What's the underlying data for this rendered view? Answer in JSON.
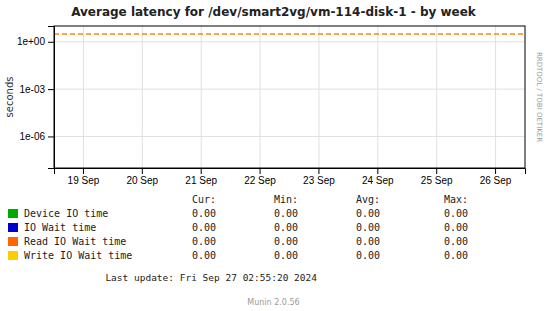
{
  "chart_data": {
    "type": "line",
    "title": "Average latency for /dev/smart2vg/vm-114-disk-1 - by week",
    "y_label": "seconds",
    "categories": [
      "19 Sep",
      "20 Sep",
      "21 Sep",
      "22 Sep",
      "23 Sep",
      "24 Sep",
      "25 Sep",
      "26 Sep"
    ],
    "log": "y",
    "ylim": [
      1e-08,
      10
    ],
    "yticks": [
      {
        "value": 1e-06,
        "label": "1e-06"
      },
      {
        "value": 0.001,
        "label": "1e-03"
      },
      {
        "value": 1,
        "label": "1e+00"
      }
    ],
    "grid": true,
    "annotations": [
      {
        "y": 3.16,
        "color": "#ff8800",
        "line_style": "dashed"
      }
    ],
    "summary_headers": [
      "Cur:",
      "Min:",
      "Avg:",
      "Max:"
    ],
    "series": [
      {
        "name": "Device IO time",
        "color": "#00aa00",
        "summary": [
          "0.00",
          "0.00",
          "0.00",
          "0.00"
        ]
      },
      {
        "name": "IO Wait time",
        "color": "#0000cc",
        "summary": [
          "0.00",
          "0.00",
          "0.00",
          "0.00"
        ]
      },
      {
        "name": "Read IO Wait time",
        "color": "#ff6600",
        "summary": [
          "0.00",
          "0.00",
          "0.00",
          "0.00"
        ]
      },
      {
        "name": "Write IO Wait time",
        "color": "#ffcc00",
        "summary": [
          "0.00",
          "0.00",
          "0.00",
          "0.00"
        ]
      }
    ],
    "side_label": "RRDTOOL / TOBI OETIKER",
    "footer": "Last update: Fri Sep 27 02:55:20 2024",
    "credit": "Munin 2.0.56"
  }
}
